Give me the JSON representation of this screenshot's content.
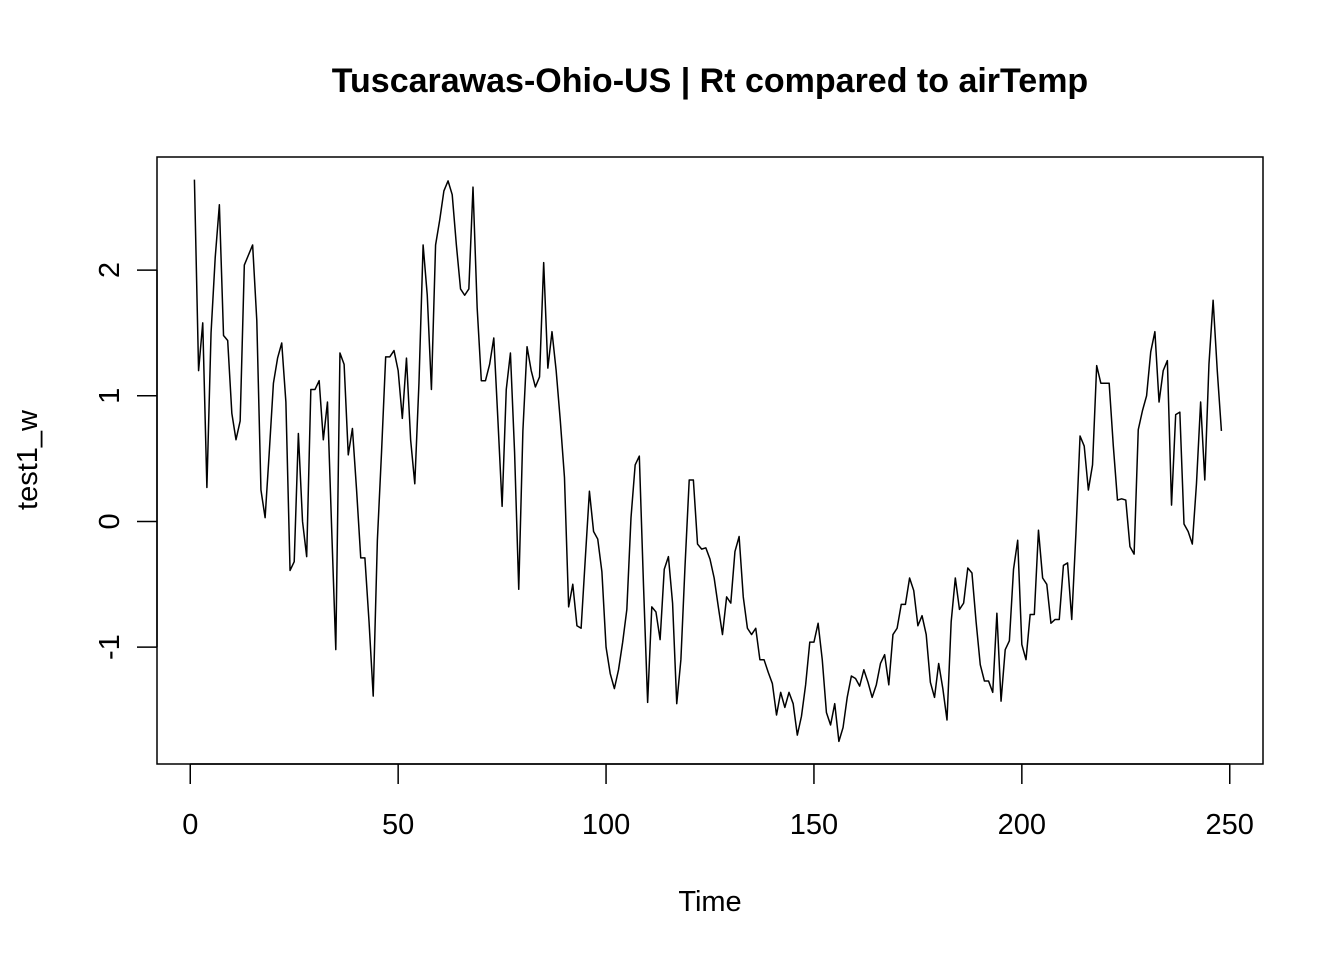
{
  "chart_data": {
    "type": "line",
    "title": "Tuscarawas-Ohio-US | Rt compared to airTemp",
    "xlabel": "Time",
    "ylabel": "test1_w",
    "xlim": [
      -8,
      258
    ],
    "ylim": [
      -1.93,
      2.9
    ],
    "xticks": [
      0,
      50,
      100,
      150,
      200,
      250
    ],
    "yticks": [
      -1,
      0,
      1,
      2
    ],
    "grid": false,
    "legend": "none",
    "line_color": "#000000",
    "series": [
      {
        "x": [
          1,
          2,
          3,
          4,
          5,
          6,
          7,
          8,
          9,
          10,
          11,
          12,
          13,
          14,
          15,
          16,
          17,
          18,
          19,
          20,
          21,
          22,
          23,
          24,
          25,
          26,
          27,
          28,
          29,
          30,
          31,
          32,
          33,
          34,
          35,
          36,
          37,
          38,
          39,
          40,
          41,
          42,
          43,
          44,
          45,
          46,
          47,
          48,
          49,
          50,
          51,
          52,
          53,
          54,
          55,
          56,
          57,
          58,
          59,
          60,
          61,
          62,
          63,
          64,
          65,
          66,
          67,
          68,
          69,
          70,
          71,
          72,
          73,
          74,
          75,
          76,
          77,
          78,
          79,
          80,
          81,
          82,
          83,
          84,
          85,
          86,
          87,
          88,
          89,
          90,
          91,
          92,
          93,
          94,
          95,
          96,
          97,
          98,
          99,
          100,
          101,
          102,
          103,
          104,
          105,
          106,
          107,
          108,
          109,
          110,
          111,
          112,
          113,
          114,
          115,
          116,
          117,
          118,
          119,
          120,
          121,
          122,
          123,
          124,
          125,
          126,
          127,
          128,
          129,
          130,
          131,
          132,
          133,
          134,
          135,
          136,
          137,
          138,
          139,
          140,
          141,
          142,
          143,
          144,
          145,
          146,
          147,
          148,
          149,
          150,
          151,
          152,
          153,
          154,
          155,
          156,
          157,
          158,
          159,
          160,
          161,
          162,
          163,
          164,
          165,
          166,
          167,
          168,
          169,
          170,
          171,
          172,
          173,
          174,
          175,
          176,
          177,
          178,
          179,
          180,
          181,
          182,
          183,
          184,
          185,
          186,
          187,
          188,
          189,
          190,
          191,
          192,
          193,
          194,
          195,
          196,
          197,
          198,
          199,
          200,
          201,
          202,
          203,
          204,
          205,
          206,
          207,
          208,
          209,
          210,
          211,
          212,
          213,
          214,
          215,
          216,
          217,
          218,
          219,
          220,
          221,
          222,
          223,
          224,
          225,
          226,
          227,
          228,
          229,
          230,
          231,
          232,
          233,
          234,
          235,
          236,
          237,
          238,
          239,
          240,
          241,
          242,
          243,
          244,
          245,
          246,
          247,
          248
        ],
        "values": [
          2.72,
          1.2,
          1.58,
          0.27,
          1.5,
          2.1,
          2.52,
          1.48,
          1.44,
          0.86,
          0.65,
          0.8,
          2.04,
          2.12,
          2.2,
          1.6,
          0.25,
          0.03,
          0.55,
          1.1,
          1.3,
          1.42,
          0.95,
          -0.39,
          -0.32,
          0.7,
          0.0,
          -0.28,
          1.05,
          1.05,
          1.12,
          0.65,
          0.95,
          -0.05,
          -1.02,
          1.34,
          1.25,
          0.53,
          0.74,
          0.25,
          -0.29,
          -0.29,
          -0.8,
          -1.39,
          -0.15,
          0.55,
          1.31,
          1.31,
          1.36,
          1.2,
          0.82,
          1.3,
          0.65,
          0.3,
          1.1,
          2.2,
          1.8,
          1.05,
          2.2,
          2.4,
          2.63,
          2.71,
          2.6,
          2.2,
          1.85,
          1.8,
          1.85,
          2.66,
          1.7,
          1.12,
          1.12,
          1.25,
          1.46,
          0.8,
          0.12,
          1.05,
          1.34,
          0.55,
          -0.54,
          0.72,
          1.39,
          1.2,
          1.07,
          1.15,
          2.06,
          1.22,
          1.51,
          1.2,
          0.8,
          0.35,
          -0.68,
          -0.5,
          -0.83,
          -0.85,
          -0.3,
          0.24,
          -0.08,
          -0.14,
          -0.4,
          -1.0,
          -1.21,
          -1.33,
          -1.18,
          -0.96,
          -0.7,
          0.03,
          0.45,
          0.52,
          -0.5,
          -1.44,
          -0.68,
          -0.72,
          -0.94,
          -0.38,
          -0.28,
          -0.65,
          -1.45,
          -1.1,
          -0.35,
          0.33,
          0.33,
          -0.18,
          -0.22,
          -0.21,
          -0.3,
          -0.45,
          -0.68,
          -0.9,
          -0.6,
          -0.65,
          -0.24,
          -0.12,
          -0.6,
          -0.85,
          -0.9,
          -0.85,
          -1.1,
          -1.1,
          -1.2,
          -1.29,
          -1.54,
          -1.36,
          -1.48,
          -1.36,
          -1.45,
          -1.7,
          -1.55,
          -1.3,
          -0.96,
          -0.96,
          -0.81,
          -1.1,
          -1.52,
          -1.62,
          -1.45,
          -1.75,
          -1.64,
          -1.4,
          -1.23,
          -1.25,
          -1.31,
          -1.18,
          -1.28,
          -1.4,
          -1.3,
          -1.13,
          -1.06,
          -1.3,
          -0.9,
          -0.85,
          -0.66,
          -0.66,
          -0.45,
          -0.55,
          -0.83,
          -0.75,
          -0.9,
          -1.28,
          -1.4,
          -1.13,
          -1.33,
          -1.58,
          -0.8,
          -0.45,
          -0.7,
          -0.65,
          -0.37,
          -0.41,
          -0.8,
          -1.14,
          -1.27,
          -1.27,
          -1.36,
          -0.73,
          -1.43,
          -1.02,
          -0.95,
          -0.38,
          -0.15,
          -0.98,
          -1.1,
          -0.74,
          -0.74,
          -0.07,
          -0.45,
          -0.5,
          -0.81,
          -0.78,
          -0.78,
          -0.35,
          -0.33,
          -0.78,
          -0.1,
          0.68,
          0.6,
          0.25,
          0.45,
          1.24,
          1.1,
          1.1,
          1.1,
          0.6,
          0.17,
          0.18,
          0.17,
          -0.2,
          -0.26,
          0.73,
          0.88,
          1.0,
          1.35,
          1.51,
          0.95,
          1.2,
          1.28,
          0.13,
          0.85,
          0.87,
          -0.02,
          -0.08,
          -0.18,
          0.3,
          0.95,
          0.33,
          1.25,
          1.76,
          1.2,
          0.72
        ]
      }
    ]
  }
}
